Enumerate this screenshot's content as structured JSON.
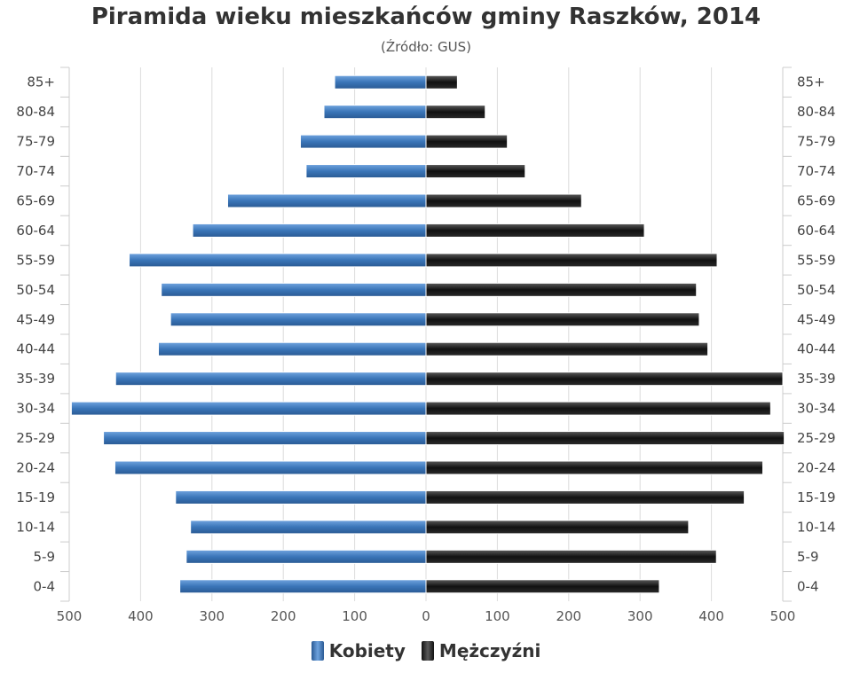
{
  "chart_data": {
    "type": "bar",
    "orientation": "horizontal",
    "title": "Piramida wieku mieszkańców gminy Raszków, 2014",
    "subtitle": "(Źródło: GUS)",
    "categories": [
      "85+",
      "80-84",
      "75-79",
      "70-74",
      "65-69",
      "60-64",
      "55-59",
      "50-54",
      "45-49",
      "40-44",
      "35-39",
      "30-34",
      "25-29",
      "20-24",
      "15-19",
      "10-14",
      "5-9",
      "0-4"
    ],
    "series": [
      {
        "name": "Kobiety",
        "color": "#3a75b8",
        "values": [
          128,
          143,
          176,
          168,
          278,
          327,
          416,
          371,
          358,
          375,
          435,
          497,
          452,
          436,
          351,
          330,
          336,
          345
        ]
      },
      {
        "name": "Mężczyźni",
        "color": "#1a1a1a",
        "values": [
          44,
          83,
          114,
          139,
          218,
          306,
          408,
          379,
          383,
          395,
          500,
          483,
          502,
          472,
          446,
          368,
          407,
          327
        ]
      }
    ],
    "xlim": [
      -500,
      500
    ],
    "x_ticks": [
      "500",
      "400",
      "300",
      "200",
      "100",
      "0",
      "100",
      "200",
      "300",
      "400",
      "500"
    ],
    "grid": true,
    "legend_position": "bottom"
  }
}
